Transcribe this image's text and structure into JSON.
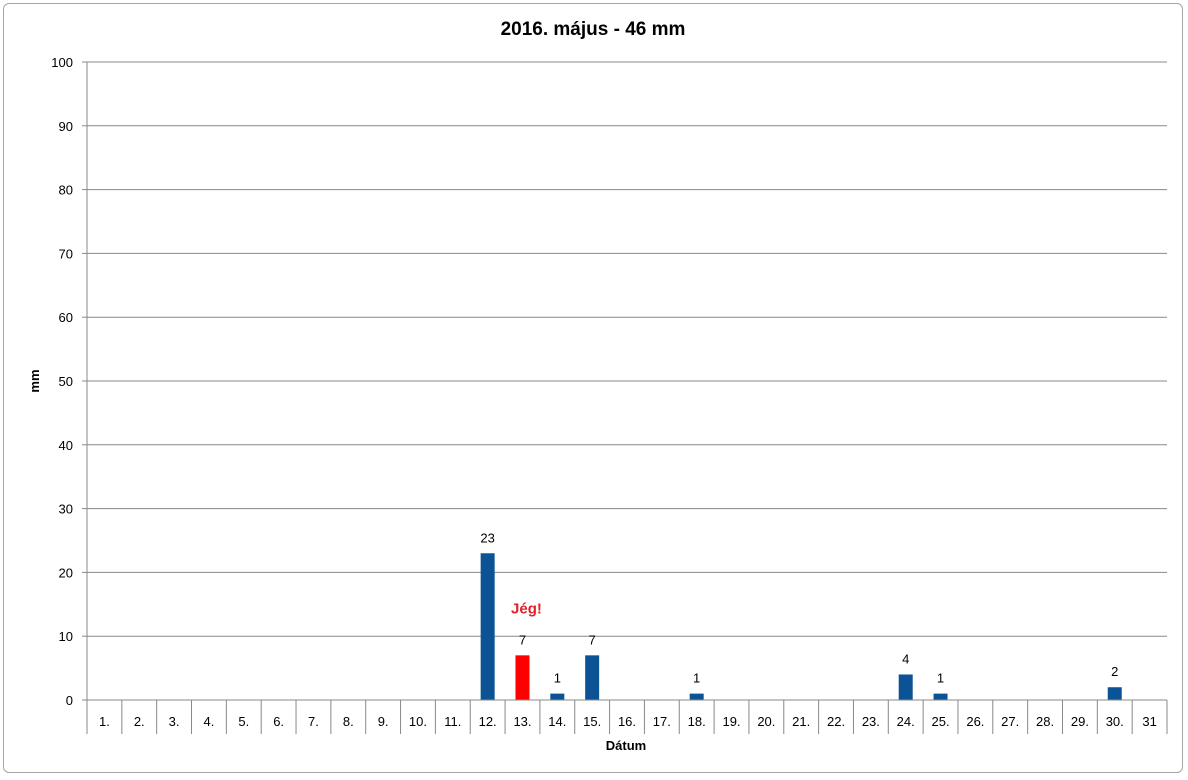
{
  "chart_data": {
    "type": "bar",
    "title": "2016. május - 46 mm",
    "xlabel": "Dátum",
    "ylabel": "mm",
    "ylim": [
      0,
      100
    ],
    "yticks": [
      0,
      10,
      20,
      30,
      40,
      50,
      60,
      70,
      80,
      90,
      100
    ],
    "grid": true,
    "legend": "none",
    "categories": [
      "1.",
      "2.",
      "3.",
      "4.",
      "5.",
      "6.",
      "7.",
      "8.",
      "9.",
      "10.",
      "11.",
      "12.",
      "13.",
      "14.",
      "15.",
      "16.",
      "17.",
      "18.",
      "19.",
      "20.",
      "21.",
      "22.",
      "23.",
      "24.",
      "25.",
      "26.",
      "27.",
      "28.",
      "29.",
      "30.",
      "31"
    ],
    "values": [
      0,
      0,
      0,
      0,
      0,
      0,
      0,
      0,
      0,
      0,
      0,
      23,
      7,
      1,
      7,
      0,
      0,
      1,
      0,
      0,
      0,
      0,
      0,
      4,
      1,
      0,
      0,
      0,
      0,
      2,
      0
    ],
    "bar_color": "#0b5394",
    "highlight_color": "#ff0000",
    "highlight_index": 12,
    "annotations": [
      {
        "text": "Jég!",
        "category_index": 12,
        "y": 14,
        "color": "#e0202a"
      }
    ]
  }
}
